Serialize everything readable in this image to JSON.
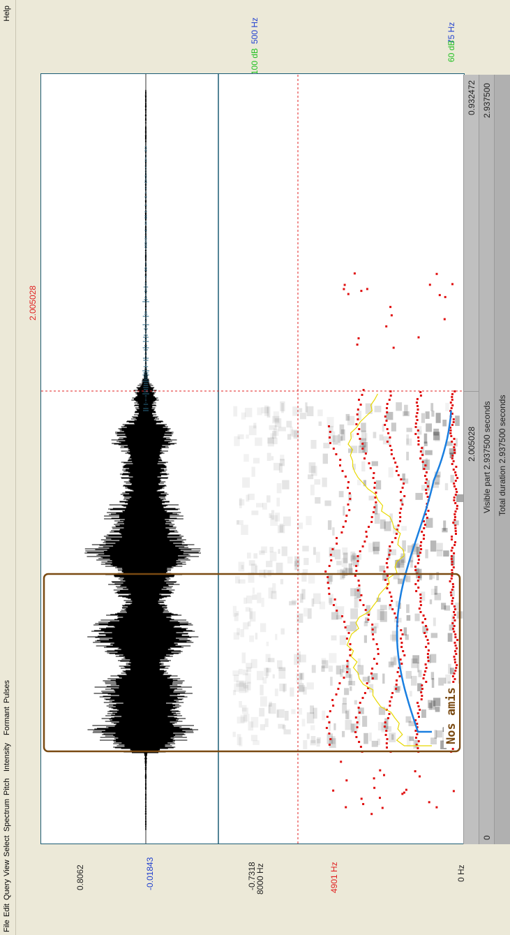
{
  "menu": {
    "items": [
      "File",
      "Edit",
      "Query",
      "View",
      "Select",
      "Spectrum",
      "Pitch",
      "Intensity",
      "Formant",
      "Pulses"
    ],
    "help": "Help"
  },
  "waveform": {
    "y_max": "0.8062",
    "y_cursor": "-0.01843",
    "y_min": "-0.7318"
  },
  "spectrogram": {
    "freq_max": "8000 Hz",
    "freq_cursor": "4901 Hz",
    "freq_min": "0 Hz",
    "pitch_max": "500 Hz",
    "pitch_min": "75 Hz",
    "intensity_max": "100 dB",
    "intensity_min": "60 dB"
  },
  "cursor": {
    "time": "2.005028",
    "time_top": "2.005028"
  },
  "annotation": {
    "text": "Nos amis"
  },
  "ruler": {
    "start": "0",
    "cursor_left": "2.005028",
    "cursor_right": "0.932472",
    "end": "2.937500",
    "visible_part": "Visible part 2.937500 seconds",
    "total_duration": "Total duration 2.937500 seconds"
  },
  "colors": {
    "waveform": "#000000",
    "frame": "#1a5b74",
    "cursor": "#e02020",
    "formant": "#e01010",
    "pitch": "#1a7fe0",
    "intensity": "#e8d800",
    "selection": "#7a4a12"
  }
}
